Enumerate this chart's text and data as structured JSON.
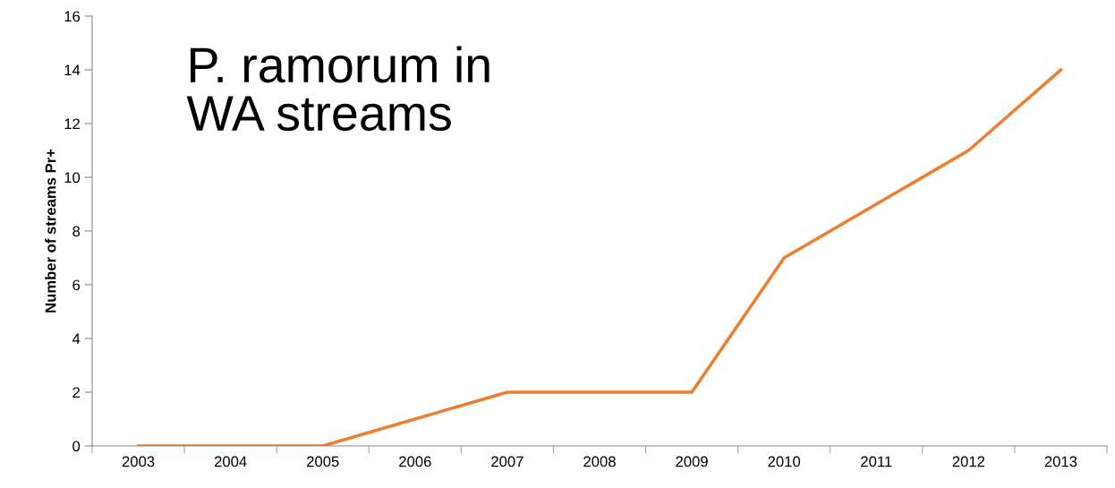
{
  "chart_data": {
    "type": "line",
    "title": "P. ramorum in\nWA streams",
    "ylabel": "Number of streams Pr+",
    "categories": [
      "2003",
      "2004",
      "2005",
      "2006",
      "2007",
      "2008",
      "2009",
      "2010",
      "2011",
      "2012",
      "2013"
    ],
    "series": [
      {
        "color": "#ed7d31",
        "values": [
          0,
          0,
          0,
          1,
          2,
          2,
          2,
          7,
          9,
          11,
          14
        ]
      }
    ],
    "ylim": [
      0,
      16
    ],
    "yticks": [
      0,
      2,
      4,
      6,
      8,
      10,
      12,
      14,
      16
    ],
    "grid": false,
    "legend": false,
    "marker": "none",
    "line_style": "solid"
  }
}
